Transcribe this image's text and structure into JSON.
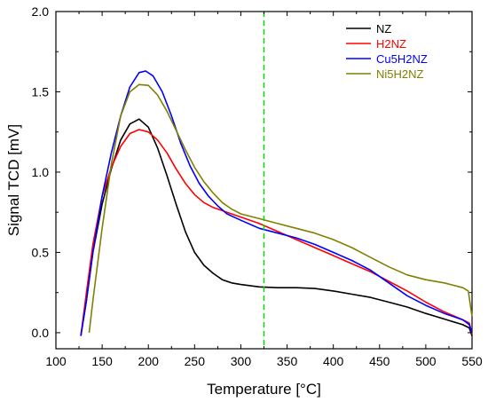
{
  "chart_data": {
    "type": "line",
    "xlabel": "Temperature [°C]",
    "ylabel": "Signal TCD [mV]",
    "xlim": [
      100,
      550
    ],
    "ylim": [
      -0.1,
      2.0
    ],
    "xticks": [
      100,
      150,
      200,
      250,
      300,
      350,
      400,
      450,
      500,
      550
    ],
    "yticks": [
      0.0,
      0.5,
      1.0,
      1.5,
      2.0
    ],
    "ytick_labels": [
      "0.0",
      "0.5",
      "1.0",
      "1.5",
      "2.0"
    ],
    "legend_position": "top-right",
    "reference_line": {
      "x": 325,
      "color": "#00dd00",
      "style": "dashed"
    },
    "series": [
      {
        "name": "NZ",
        "color": "#000000",
        "points": [
          [
            127,
            -0.02
          ],
          [
            133,
            0.2
          ],
          [
            140,
            0.5
          ],
          [
            150,
            0.8
          ],
          [
            160,
            1.02
          ],
          [
            170,
            1.2
          ],
          [
            180,
            1.3
          ],
          [
            190,
            1.33
          ],
          [
            200,
            1.28
          ],
          [
            210,
            1.15
          ],
          [
            220,
            0.98
          ],
          [
            230,
            0.8
          ],
          [
            240,
            0.63
          ],
          [
            250,
            0.5
          ],
          [
            260,
            0.42
          ],
          [
            270,
            0.37
          ],
          [
            280,
            0.33
          ],
          [
            290,
            0.31
          ],
          [
            300,
            0.3
          ],
          [
            320,
            0.285
          ],
          [
            340,
            0.28
          ],
          [
            360,
            0.28
          ],
          [
            380,
            0.275
          ],
          [
            400,
            0.26
          ],
          [
            420,
            0.24
          ],
          [
            440,
            0.22
          ],
          [
            460,
            0.19
          ],
          [
            480,
            0.16
          ],
          [
            500,
            0.12
          ],
          [
            520,
            0.085
          ],
          [
            540,
            0.05
          ],
          [
            547,
            0.03
          ],
          [
            550,
            -0.02
          ]
        ]
      },
      {
        "name": "H2NZ",
        "color": "#ff0000",
        "points": [
          [
            127,
            -0.02
          ],
          [
            133,
            0.25
          ],
          [
            140,
            0.55
          ],
          [
            150,
            0.85
          ],
          [
            160,
            1.03
          ],
          [
            170,
            1.16
          ],
          [
            180,
            1.24
          ],
          [
            190,
            1.265
          ],
          [
            200,
            1.25
          ],
          [
            210,
            1.2
          ],
          [
            220,
            1.12
          ],
          [
            230,
            1.02
          ],
          [
            240,
            0.93
          ],
          [
            250,
            0.86
          ],
          [
            260,
            0.81
          ],
          [
            270,
            0.78
          ],
          [
            280,
            0.76
          ],
          [
            290,
            0.74
          ],
          [
            300,
            0.72
          ],
          [
            320,
            0.68
          ],
          [
            340,
            0.63
          ],
          [
            360,
            0.58
          ],
          [
            380,
            0.53
          ],
          [
            400,
            0.48
          ],
          [
            420,
            0.43
          ],
          [
            440,
            0.38
          ],
          [
            460,
            0.32
          ],
          [
            480,
            0.26
          ],
          [
            500,
            0.19
          ],
          [
            520,
            0.13
          ],
          [
            540,
            0.08
          ],
          [
            547,
            0.06
          ],
          [
            550,
            -0.01
          ]
        ]
      },
      {
        "name": "Cu5H2NZ",
        "color": "#0000ff",
        "points": [
          [
            127,
            -0.02
          ],
          [
            133,
            0.2
          ],
          [
            140,
            0.5
          ],
          [
            150,
            0.85
          ],
          [
            160,
            1.12
          ],
          [
            170,
            1.35
          ],
          [
            180,
            1.53
          ],
          [
            190,
            1.62
          ],
          [
            197,
            1.63
          ],
          [
            205,
            1.6
          ],
          [
            215,
            1.5
          ],
          [
            225,
            1.35
          ],
          [
            235,
            1.18
          ],
          [
            245,
            1.04
          ],
          [
            255,
            0.93
          ],
          [
            265,
            0.85
          ],
          [
            275,
            0.79
          ],
          [
            285,
            0.74
          ],
          [
            300,
            0.7
          ],
          [
            320,
            0.65
          ],
          [
            340,
            0.62
          ],
          [
            360,
            0.59
          ],
          [
            380,
            0.55
          ],
          [
            400,
            0.5
          ],
          [
            420,
            0.45
          ],
          [
            440,
            0.39
          ],
          [
            460,
            0.31
          ],
          [
            480,
            0.23
          ],
          [
            500,
            0.17
          ],
          [
            520,
            0.12
          ],
          [
            540,
            0.08
          ],
          [
            547,
            0.05
          ],
          [
            550,
            0.0
          ]
        ]
      },
      {
        "name": "Ni5H2NZ",
        "color": "#808000",
        "points": [
          [
            136,
            0.0
          ],
          [
            140,
            0.2
          ],
          [
            150,
            0.65
          ],
          [
            160,
            1.05
          ],
          [
            170,
            1.35
          ],
          [
            180,
            1.5
          ],
          [
            190,
            1.545
          ],
          [
            200,
            1.54
          ],
          [
            210,
            1.48
          ],
          [
            220,
            1.38
          ],
          [
            230,
            1.26
          ],
          [
            240,
            1.14
          ],
          [
            250,
            1.03
          ],
          [
            260,
            0.94
          ],
          [
            270,
            0.87
          ],
          [
            280,
            0.81
          ],
          [
            290,
            0.77
          ],
          [
            300,
            0.74
          ],
          [
            320,
            0.71
          ],
          [
            340,
            0.68
          ],
          [
            360,
            0.65
          ],
          [
            380,
            0.62
          ],
          [
            400,
            0.58
          ],
          [
            420,
            0.53
          ],
          [
            440,
            0.47
          ],
          [
            460,
            0.41
          ],
          [
            480,
            0.36
          ],
          [
            500,
            0.33
          ],
          [
            520,
            0.31
          ],
          [
            540,
            0.28
          ],
          [
            546,
            0.26
          ],
          [
            550,
            0.1
          ]
        ]
      }
    ]
  }
}
